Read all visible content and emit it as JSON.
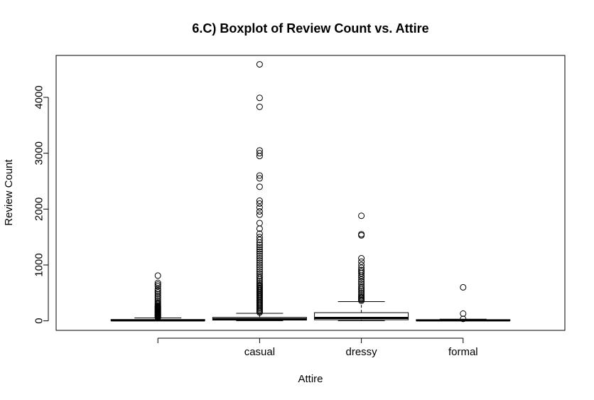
{
  "chart_data": {
    "type": "box",
    "title": "6.C) Boxplot of Review Count vs. Attire",
    "xlabel": "Attire",
    "ylabel": "Review Count",
    "ylim": [
      -170,
      4750
    ],
    "yticks": [
      0,
      1000,
      2000,
      3000,
      4000
    ],
    "categories": [
      "",
      "casual",
      "dressy",
      "formal"
    ],
    "boxes": [
      {
        "category": "",
        "q1": 4,
        "median": 10,
        "q3": 24,
        "whisker_low": 3,
        "whisker_high": 53,
        "outliers": [
          60,
          70,
          80,
          90,
          100,
          110,
          120,
          130,
          140,
          150,
          160,
          170,
          180,
          190,
          200,
          210,
          220,
          230,
          240,
          250,
          260,
          270,
          290,
          310,
          330,
          360,
          390,
          420,
          450,
          480,
          510,
          540,
          570,
          620,
          650,
          680,
          810
        ]
      },
      {
        "category": "casual",
        "q1": 14,
        "median": 30,
        "q3": 62,
        "whisker_low": 3,
        "whisker_high": 135,
        "outliers": [
          150,
          170,
          190,
          210,
          230,
          250,
          270,
          290,
          310,
          330,
          350,
          370,
          390,
          410,
          430,
          450,
          470,
          490,
          510,
          530,
          550,
          570,
          590,
          610,
          630,
          650,
          680,
          710,
          740,
          770,
          800,
          840,
          880,
          920,
          960,
          1000,
          1040,
          1080,
          1120,
          1160,
          1200,
          1240,
          1280,
          1320,
          1360,
          1400,
          1450,
          1500,
          1560,
          1650,
          1750,
          1900,
          1960,
          2030,
          2100,
          2150,
          2400,
          2550,
          2600,
          2950,
          3000,
          3050,
          3830,
          3990,
          4590
        ]
      },
      {
        "category": "dressy",
        "q1": 20,
        "median": 52,
        "q3": 147,
        "whisker_low": 3,
        "whisker_high": 345,
        "outliers": [
          360,
          380,
          400,
          420,
          440,
          470,
          500,
          530,
          560,
          590,
          620,
          660,
          700,
          740,
          780,
          810,
          850,
          880,
          910,
          950,
          1000,
          1060,
          1120,
          1530,
          1550,
          1880
        ]
      },
      {
        "category": "formal",
        "q1": 5,
        "median": 10,
        "q3": 20,
        "whisker_low": 3,
        "whisker_high": 30,
        "outliers": [
          35,
          130,
          600
        ]
      }
    ]
  }
}
